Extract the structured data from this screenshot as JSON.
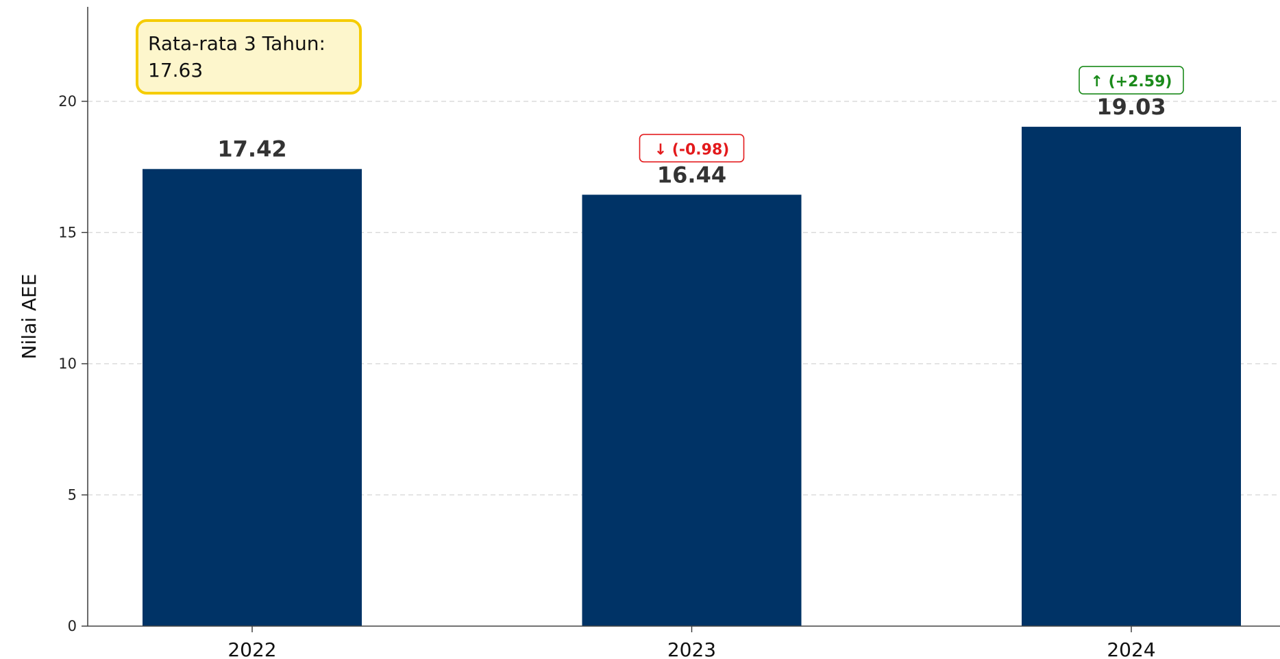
{
  "chart_data": {
    "type": "bar",
    "categories": [
      "2022",
      "2023",
      "2024"
    ],
    "values": [
      17.42,
      16.44,
      19.03
    ],
    "value_labels": [
      "17.42",
      "16.44",
      "19.03"
    ],
    "changes": [
      null,
      {
        "text": "↓ (-0.98)",
        "color": "#e31a1c"
      },
      {
        "text": "↑ (+2.59)",
        "color": "#1a8a1a"
      }
    ],
    "xlabel": "",
    "ylabel": "Nilai AEE",
    "ylim": [
      0,
      23.6
    ],
    "yticks": [
      0,
      5,
      10,
      15,
      20
    ],
    "ytick_labels": [
      "0",
      "5",
      "10",
      "15",
      "20"
    ],
    "grid": true,
    "bar_color": "#003366",
    "annotation": {
      "lines": [
        "Rata-rata 3 Tahun:",
        "17.63"
      ],
      "position": "top-left",
      "background": "#fdf6cc",
      "border": "#f5cc00"
    }
  }
}
